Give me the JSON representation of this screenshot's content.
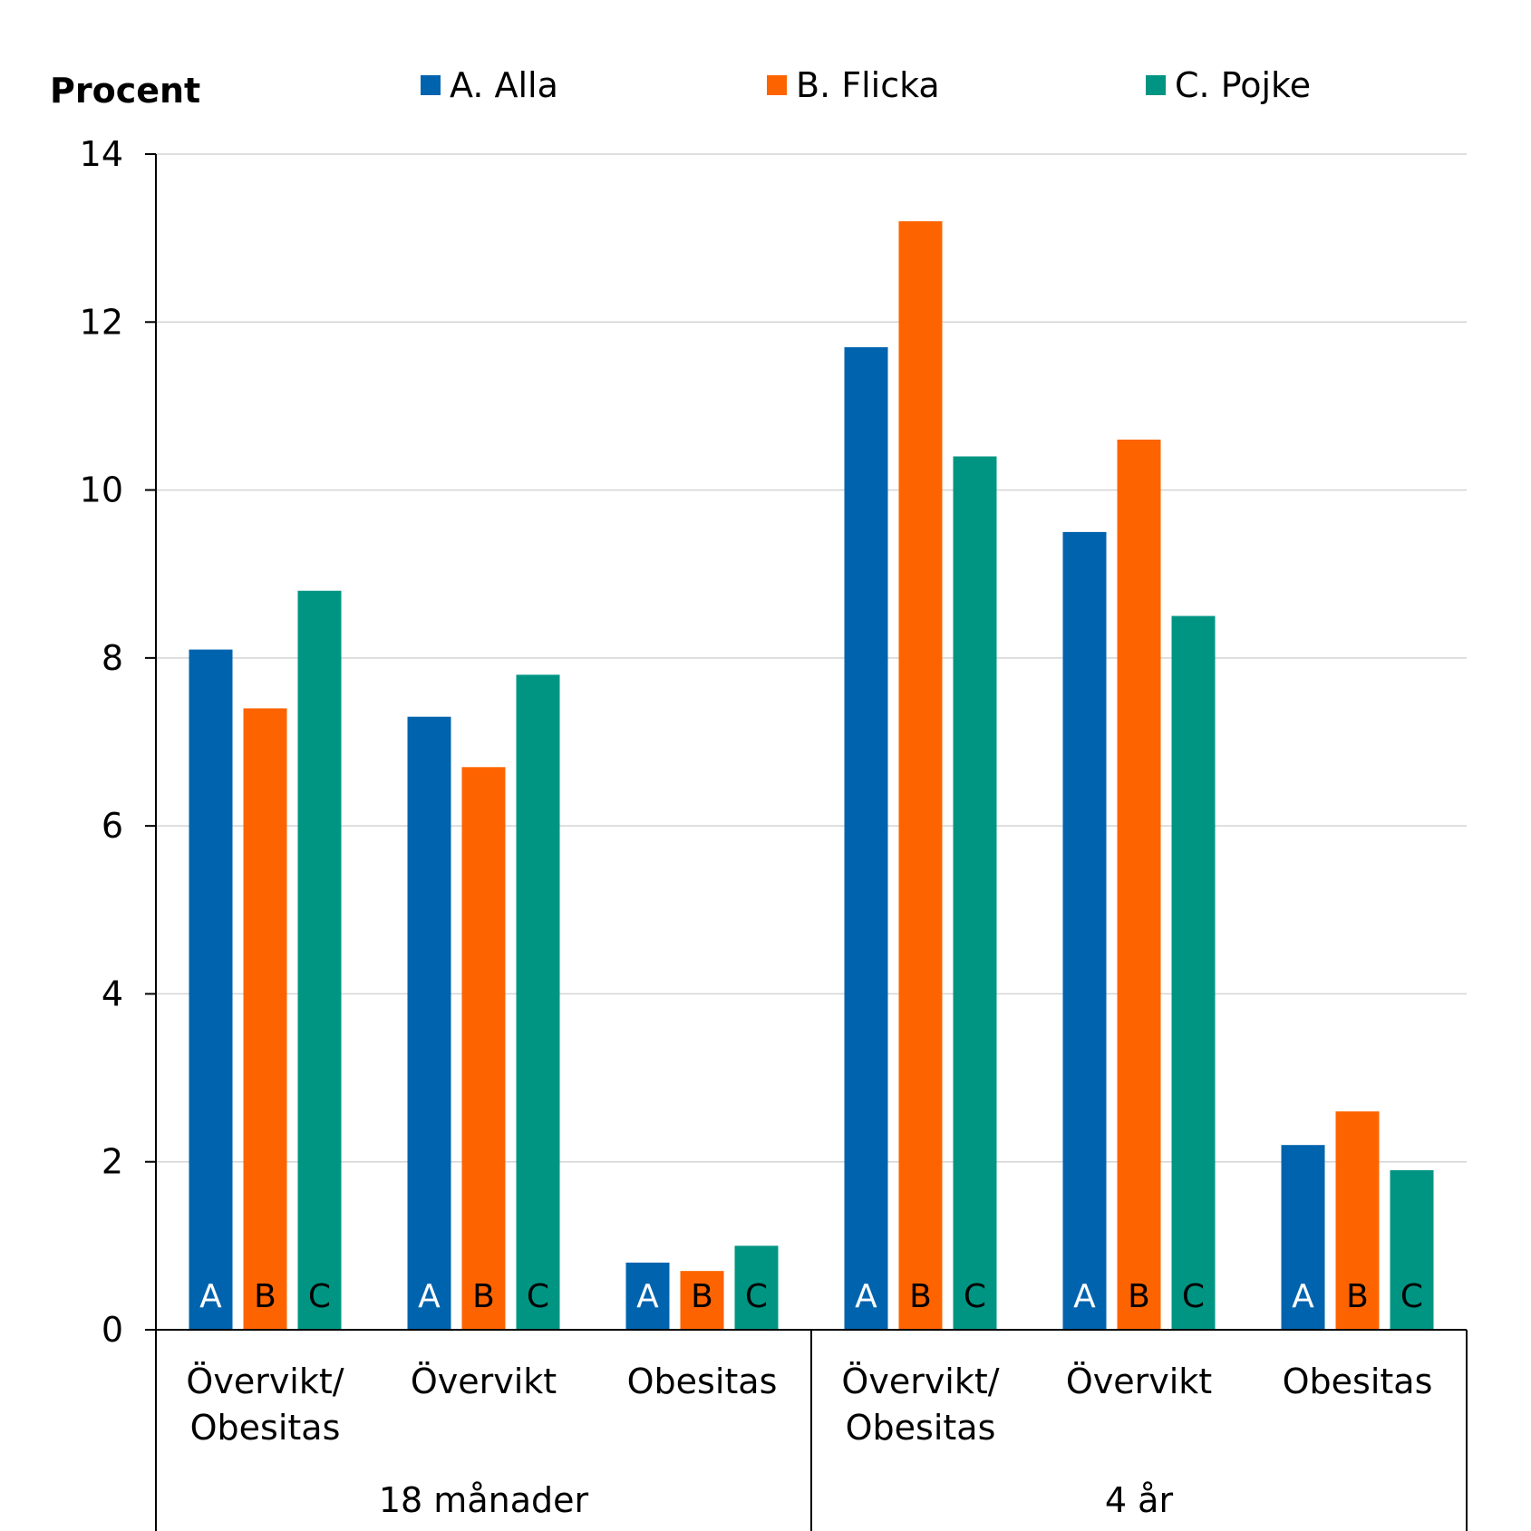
{
  "chart_data": {
    "type": "bar",
    "ylabel": "Procent",
    "ylim": [
      0,
      14
    ],
    "yticks": [
      0,
      2,
      4,
      6,
      8,
      10,
      12,
      14
    ],
    "yticks_labels": [
      "0",
      "2",
      "4",
      "6",
      "8",
      "10",
      "12",
      "14"
    ],
    "grid": true,
    "legend_position": "top",
    "groups": [
      {
        "label": "18 månader",
        "categories": [
          "Övervikt/\nObesitas",
          "Övervikt",
          "Obesitas"
        ]
      },
      {
        "label": "4 år",
        "categories": [
          "Övervikt/\nObesitas",
          "Övervikt",
          "Obesitas"
        ]
      }
    ],
    "categories": [
      "Övervikt/\nObesitas",
      "Övervikt",
      "Obesitas",
      "Övervikt/\nObesitas",
      "Övervikt",
      "Obesitas"
    ],
    "series": [
      {
        "name": "A. Alla",
        "bar_label": "A",
        "color": "#0063ae",
        "label_color": "#ffffff",
        "values": [
          8.1,
          7.3,
          0.8,
          11.7,
          9.5,
          2.2
        ]
      },
      {
        "name": "B. Flicka",
        "bar_label": "B",
        "color": "#fd6400",
        "label_color": "#000000",
        "values": [
          7.4,
          6.7,
          0.7,
          13.2,
          10.6,
          2.6
        ]
      },
      {
        "name": "C. Pojke",
        "bar_label": "C",
        "color": "#009583",
        "label_color": "#000000",
        "values": [
          8.8,
          7.8,
          1.0,
          10.4,
          8.5,
          1.9
        ]
      }
    ]
  }
}
